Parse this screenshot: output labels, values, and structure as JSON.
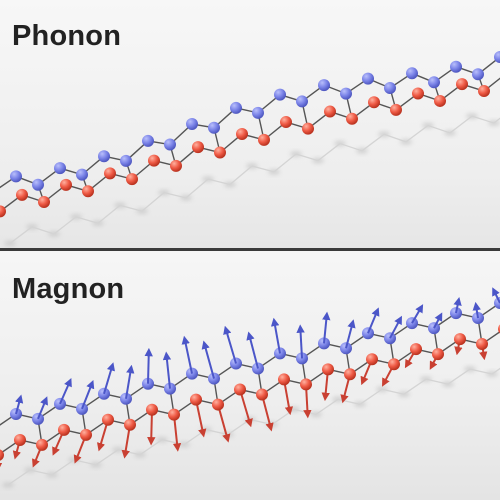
{
  "panels": [
    {
      "title": "Phonon"
    },
    {
      "title": "Magnon"
    }
  ],
  "colors": {
    "sublattice_a": "#7b84e8",
    "sublattice_b": "#ef5a45",
    "bond": "#555555",
    "spin_a": "#4b56c8",
    "spin_b": "#c94032",
    "shadow": "#c9c9c9"
  }
}
